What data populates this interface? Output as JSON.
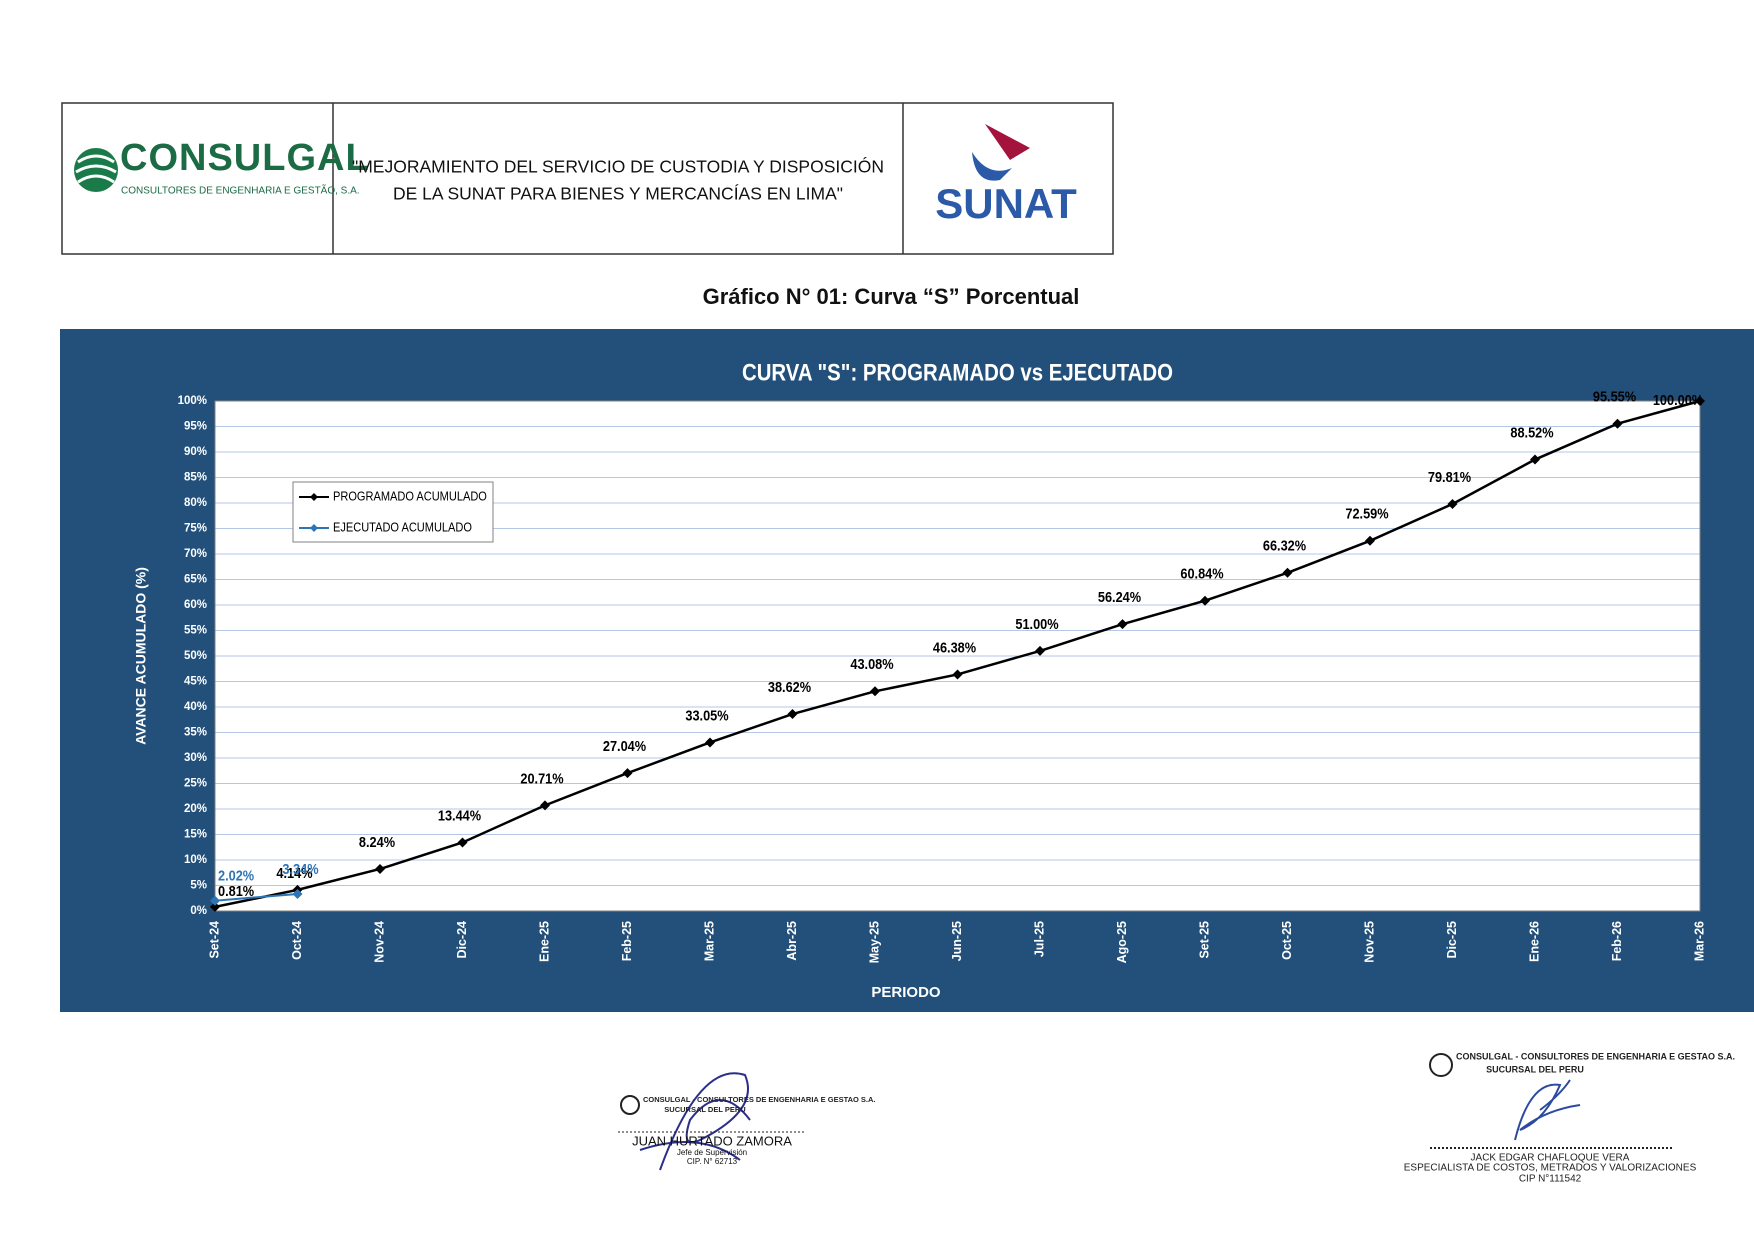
{
  "header": {
    "logo_left": {
      "name": "CONSULGAL",
      "subtitle": "CONSULTORES DE ENGENHARIA E GESTÃO, S.A."
    },
    "project_title": [
      "\"MEJORAMIENTO DEL SERVICIO DE CUSTODIA Y DISPOSICIÓN",
      "DE LA SUNAT PARA BIENES Y MERCANCÍAS EN LIMA\""
    ],
    "logo_right": "SUNAT"
  },
  "caption": "Gráfico N° 01: Curva “S” Porcentual",
  "chart_data": {
    "type": "line",
    "title": "CURVA \"S\": PROGRAMADO vs EJECUTADO",
    "x_label": "PERIODO",
    "y_label": "AVANCE ACUMULADO (%)",
    "categories": [
      "Set-24",
      "Oct-24",
      "Nov-24",
      "Dic-24",
      "Ene-25",
      "Feb-25",
      "Mar-25",
      "Abr-25",
      "May-25",
      "Jun-25",
      "Jul-25",
      "Ago-25",
      "Set-25",
      "Oct-25",
      "Nov-25",
      "Dic-25",
      "Ene-26",
      "Feb-26",
      "Mar-26"
    ],
    "series": [
      {
        "name": "PROGRAMADO ACUMULADO",
        "color": "#000000",
        "values": [
          0.81,
          4.14,
          8.24,
          13.44,
          20.71,
          27.04,
          33.05,
          38.62,
          43.08,
          46.38,
          51.0,
          56.24,
          60.84,
          66.32,
          72.59,
          79.81,
          88.52,
          95.55,
          100.0
        ],
        "value_labels": [
          "0.81%",
          "4.14%",
          "8.24%",
          "13.44%",
          "20.71%",
          "27.04%",
          "33.05%",
          "38.62%",
          "43.08%",
          "46.38%",
          "51.00%",
          "56.24%",
          "60.84%",
          "66.32%",
          "72.59%",
          "79.81%",
          "88.52%",
          "95.55%",
          "100.00%"
        ]
      },
      {
        "name": "EJECUTADO ACUMULADO",
        "color": "#2e75b6",
        "values": [
          2.02,
          3.34,
          null,
          null,
          null,
          null,
          null,
          null,
          null,
          null,
          null,
          null,
          null,
          null,
          null,
          null,
          null,
          null,
          null
        ],
        "value_labels": [
          "2.02%",
          "3.34%",
          null,
          null,
          null,
          null,
          null,
          null,
          null,
          null,
          null,
          null,
          null,
          null,
          null,
          null,
          null,
          null,
          null
        ]
      }
    ],
    "ylim": [
      0,
      100
    ],
    "yticks": [
      {
        "value": 0,
        "label": "0%"
      },
      {
        "value": 5,
        "label": "5%"
      },
      {
        "value": 10,
        "label": "10%"
      },
      {
        "value": 15,
        "label": "15%"
      },
      {
        "value": 20,
        "label": "20%"
      },
      {
        "value": 25,
        "label": "25%"
      },
      {
        "value": 30,
        "label": "30%"
      },
      {
        "value": 35,
        "label": "35%"
      },
      {
        "value": 40,
        "label": "40%"
      },
      {
        "value": 45,
        "label": "45%"
      },
      {
        "value": 50,
        "label": "50%"
      },
      {
        "value": 55,
        "label": "55%"
      },
      {
        "value": 60,
        "label": "60%"
      },
      {
        "value": 65,
        "label": "65%"
      },
      {
        "value": 70,
        "label": "70%"
      },
      {
        "value": 75,
        "label": "75%"
      },
      {
        "value": 80,
        "label": "80%"
      },
      {
        "value": 85,
        "label": "85%"
      },
      {
        "value": 90,
        "label": "90%"
      },
      {
        "value": 95,
        "label": "95%"
      },
      {
        "value": 100,
        "label": "100%"
      }
    ],
    "grid": true,
    "legend": "upper left"
  },
  "signatures": [
    {
      "company": "CONSULGAL - CONSULTORES DE ENGENHARIA E GESTAO S.A.",
      "branch": "SUCURSAL DEL PERU",
      "name": "JUAN HURTADO ZAMORA",
      "role": "Jefe de Supervisión",
      "cip": "CIP. N° 62713"
    },
    {
      "company": "CONSULGAL - CONSULTORES DE ENGENHARIA E GESTAO S.A.",
      "branch": "SUCURSAL DEL PERU",
      "name": "JACK EDGAR CHAFLOQUE VERA",
      "role": "ESPECIALISTA DE COSTOS, METRADOS Y VALORIZACIONES",
      "cip": "CIP N°111542"
    }
  ]
}
